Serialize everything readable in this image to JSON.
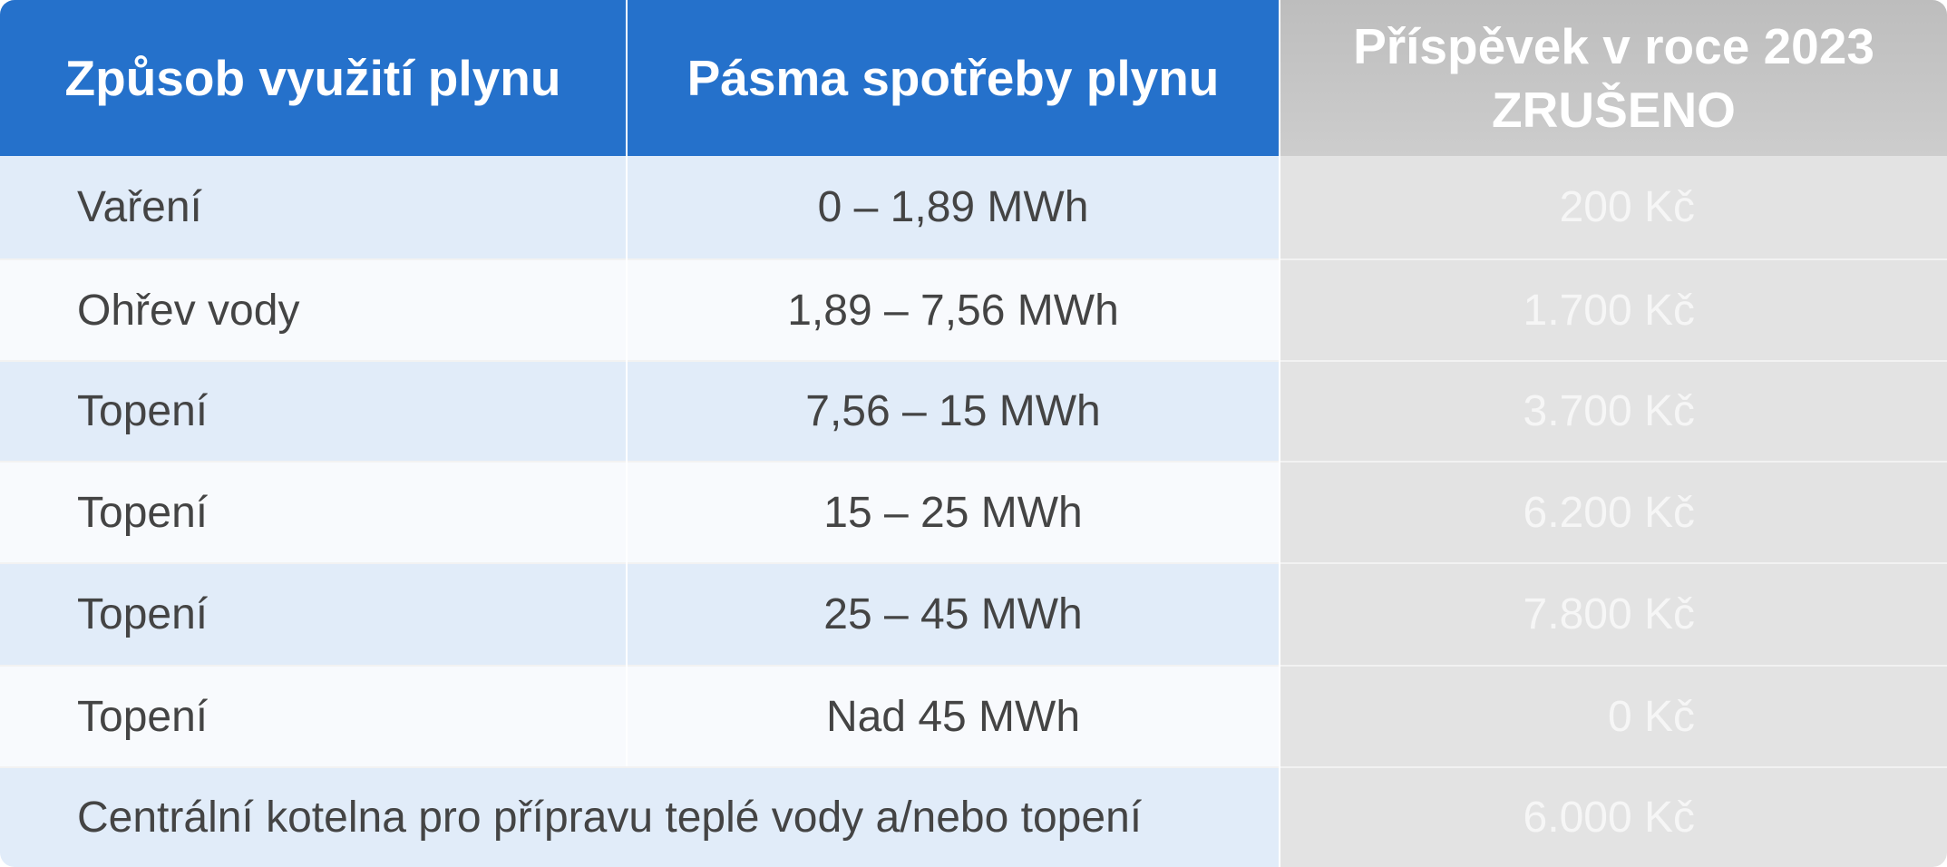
{
  "table": {
    "headers": [
      "Způsob využití plynu",
      "Pásma spotřeby plynu",
      [
        "Příspěvek v roce 2023",
        "ZRUŠENO"
      ]
    ],
    "rows": [
      [
        "Vaření",
        "0 – 1,89 MWh",
        "200 Kč"
      ],
      [
        "Ohřev vody",
        "1,89 – 7,56 MWh",
        "1.700 Kč"
      ],
      [
        "Topení",
        "7,56 – 15 MWh",
        "3.700 Kč"
      ],
      [
        "Topení",
        "15 – 25 MWh",
        "6.200 Kč"
      ],
      [
        "Topení",
        "25 – 45 MWh",
        "7.800 Kč"
      ],
      [
        "Topení",
        "Nad 45 MWh",
        "0 Kč"
      ],
      [
        "Centrální kotelna pro přípravu teplé vody a/nebo topení",
        "6.000 Kč"
      ]
    ]
  }
}
